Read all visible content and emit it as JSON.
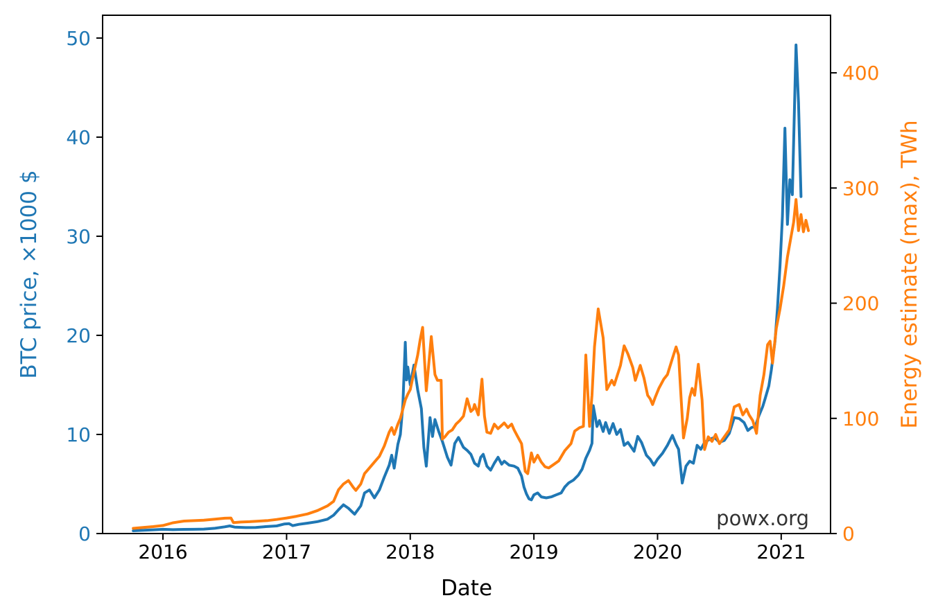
{
  "figure": {
    "watermark": "powx.org"
  },
  "chart_data": {
    "type": "line",
    "title": "",
    "xlabel": "Date",
    "x_ticks": [
      2016,
      2017,
      2018,
      2019,
      2020,
      2021
    ],
    "x_range": [
      2015.512,
      2021.399
    ],
    "grid": false,
    "legend": "none",
    "left_axis": {
      "label": "BTC price, ×1000 $",
      "color": "#1f77b4",
      "ticks": [
        0,
        10,
        20,
        30,
        40,
        50
      ],
      "range": [
        0,
        52.3
      ]
    },
    "right_axis": {
      "label": "Energy estimate (max), TWh",
      "color": "#ff7f0e",
      "ticks": [
        0,
        100,
        200,
        300,
        400
      ],
      "range": [
        0,
        450
      ]
    },
    "annotations": [
      {
        "text": "powx.org",
        "position": "bottom-right-inside"
      }
    ],
    "series": [
      {
        "name": "BTC price, ×1000 $",
        "axis": "left",
        "color": "#1f77b4",
        "x": [
          2015.76,
          2015.83,
          2015.92,
          2016.0,
          2016.08,
          2016.17,
          2016.25,
          2016.33,
          2016.42,
          2016.5,
          2016.54,
          2016.58,
          2016.67,
          2016.75,
          2016.83,
          2016.92,
          2016.98,
          2017.02,
          2017.05,
          2017.1,
          2017.17,
          2017.25,
          2017.33,
          2017.38,
          2017.42,
          2017.46,
          2017.5,
          2017.55,
          2017.6,
          2017.63,
          2017.67,
          2017.71,
          2017.75,
          2017.79,
          2017.83,
          2017.85,
          2017.87,
          2017.9,
          2017.92,
          2017.94,
          2017.96,
          2017.97,
          2017.98,
          2018.0,
          2018.03,
          2018.06,
          2018.09,
          2018.11,
          2018.13,
          2018.16,
          2018.18,
          2018.2,
          2018.23,
          2018.26,
          2018.3,
          2018.33,
          2018.36,
          2018.39,
          2018.43,
          2018.46,
          2018.49,
          2018.52,
          2018.55,
          2018.57,
          2018.59,
          2018.62,
          2018.65,
          2018.68,
          2018.71,
          2018.74,
          2018.76,
          2018.8,
          2018.84,
          2018.87,
          2018.9,
          2018.92,
          2018.94,
          2018.96,
          2018.98,
          2019.0,
          2019.03,
          2019.06,
          2019.1,
          2019.14,
          2019.18,
          2019.22,
          2019.25,
          2019.28,
          2019.32,
          2019.36,
          2019.39,
          2019.42,
          2019.45,
          2019.47,
          2019.48,
          2019.51,
          2019.53,
          2019.56,
          2019.58,
          2019.61,
          2019.64,
          2019.67,
          2019.7,
          2019.73,
          2019.76,
          2019.81,
          2019.84,
          2019.87,
          2019.91,
          2019.94,
          2019.97,
          2020.0,
          2020.04,
          2020.08,
          2020.12,
          2020.15,
          2020.17,
          2020.2,
          2020.23,
          2020.26,
          2020.29,
          2020.32,
          2020.35,
          2020.38,
          2020.42,
          2020.46,
          2020.5,
          2020.54,
          2020.58,
          2020.62,
          2020.66,
          2020.7,
          2020.73,
          2020.76,
          2020.79,
          2020.82,
          2020.85,
          2020.87,
          2020.9,
          2020.92,
          2020.95,
          2020.97,
          2020.99,
          2021.01,
          2021.03,
          2021.05,
          2021.07,
          2021.09,
          2021.12,
          2021.14,
          2021.16
        ],
        "y": [
          0.28,
          0.32,
          0.38,
          0.43,
          0.39,
          0.42,
          0.43,
          0.45,
          0.53,
          0.68,
          0.77,
          0.65,
          0.6,
          0.61,
          0.7,
          0.77,
          0.96,
          1.0,
          0.8,
          0.93,
          1.05,
          1.2,
          1.45,
          1.85,
          2.4,
          2.9,
          2.55,
          1.95,
          2.8,
          4.1,
          4.4,
          3.6,
          4.4,
          5.7,
          6.9,
          7.9,
          6.6,
          9.0,
          10.0,
          13.0,
          19.3,
          15.5,
          16.8,
          15.0,
          17.0,
          14.5,
          12.6,
          8.7,
          6.8,
          11.7,
          9.8,
          11.5,
          10.3,
          9.3,
          7.7,
          6.9,
          9.1,
          9.7,
          8.7,
          8.4,
          8.0,
          7.1,
          6.8,
          7.7,
          8.0,
          6.8,
          6.4,
          7.1,
          7.7,
          7.0,
          7.3,
          6.9,
          6.8,
          6.6,
          5.8,
          4.7,
          4.0,
          3.5,
          3.4,
          3.9,
          4.1,
          3.7,
          3.6,
          3.7,
          3.9,
          4.1,
          4.7,
          5.1,
          5.4,
          5.9,
          6.5,
          7.6,
          8.4,
          9.1,
          12.9,
          10.8,
          11.4,
          10.3,
          11.2,
          10.1,
          11.1,
          10.0,
          10.5,
          8.9,
          9.2,
          8.3,
          9.8,
          9.2,
          7.9,
          7.5,
          6.9,
          7.5,
          8.1,
          8.9,
          9.9,
          9.0,
          8.5,
          5.1,
          6.8,
          7.3,
          7.1,
          8.9,
          8.5,
          9.2,
          9.5,
          9.7,
          9.2,
          9.4,
          10.1,
          11.7,
          11.6,
          11.2,
          10.4,
          10.7,
          10.8,
          11.9,
          12.8,
          13.6,
          14.9,
          16.5,
          19.4,
          22.8,
          27.0,
          32.0,
          40.9,
          31.2,
          35.7,
          34.2,
          49.3,
          43.5,
          34.0
        ]
      },
      {
        "name": "Energy estimate (max), TWh",
        "axis": "right",
        "color": "#ff7f0e",
        "x": [
          2015.76,
          2015.83,
          2015.92,
          2016.0,
          2016.08,
          2016.17,
          2016.25,
          2016.33,
          2016.42,
          2016.5,
          2016.55,
          2016.57,
          2016.63,
          2016.7,
          2016.78,
          2016.85,
          2016.92,
          2017.0,
          2017.08,
          2017.17,
          2017.25,
          2017.33,
          2017.38,
          2017.42,
          2017.46,
          2017.5,
          2017.54,
          2017.56,
          2017.6,
          2017.63,
          2017.67,
          2017.71,
          2017.75,
          2017.79,
          2017.83,
          2017.85,
          2017.87,
          2017.9,
          2017.92,
          2017.94,
          2017.96,
          2017.98,
          2018.0,
          2018.02,
          2018.04,
          2018.06,
          2018.08,
          2018.1,
          2018.13,
          2018.17,
          2018.2,
          2018.22,
          2018.25,
          2018.26,
          2018.28,
          2018.31,
          2018.34,
          2018.37,
          2018.4,
          2018.43,
          2018.46,
          2018.49,
          2018.51,
          2018.52,
          2018.55,
          2018.58,
          2018.6,
          2018.62,
          2018.65,
          2018.68,
          2018.71,
          2018.76,
          2018.79,
          2018.82,
          2018.84,
          2018.87,
          2018.9,
          2018.92,
          2018.93,
          2018.95,
          2018.98,
          2019.0,
          2019.03,
          2019.06,
          2019.09,
          2019.12,
          2019.16,
          2019.2,
          2019.25,
          2019.3,
          2019.33,
          2019.37,
          2019.4,
          2019.42,
          2019.45,
          2019.47,
          2019.49,
          2019.52,
          2019.56,
          2019.59,
          2019.63,
          2019.65,
          2019.7,
          2019.73,
          2019.76,
          2019.8,
          2019.82,
          2019.86,
          2019.89,
          2019.92,
          2019.94,
          2019.96,
          2019.98,
          2020.01,
          2020.05,
          2020.08,
          2020.12,
          2020.15,
          2020.17,
          2020.19,
          2020.21,
          2020.24,
          2020.26,
          2020.28,
          2020.3,
          2020.33,
          2020.36,
          2020.38,
          2020.41,
          2020.44,
          2020.47,
          2020.5,
          2020.54,
          2020.58,
          2020.62,
          2020.66,
          2020.69,
          2020.72,
          2020.74,
          2020.77,
          2020.8,
          2020.83,
          2020.86,
          2020.89,
          2020.91,
          2020.93,
          2020.96,
          2020.99,
          2021.02,
          2021.05,
          2021.08,
          2021.1,
          2021.12,
          2021.14,
          2021.16,
          2021.18,
          2021.2,
          2021.22
        ],
        "y": [
          4.5,
          5.2,
          6.0,
          7.0,
          9.3,
          10.8,
          11.2,
          11.6,
          12.5,
          13.3,
          13.5,
          9.5,
          10.0,
          10.3,
          10.8,
          11.3,
          12.2,
          13.5,
          15.0,
          17.0,
          20.0,
          24.0,
          28.0,
          38.0,
          43.0,
          46.0,
          40.0,
          37.5,
          43.0,
          52.0,
          57.0,
          62.0,
          67.0,
          76.0,
          88.0,
          92.0,
          86.0,
          95.0,
          100,
          108,
          116,
          121,
          125,
          135,
          145,
          155,
          168,
          179,
          124,
          171,
          138,
          133,
          133,
          82,
          84,
          88,
          90,
          95,
          98,
          102,
          117,
          106,
          108,
          112,
          103,
          134,
          102,
          88,
          87,
          95,
          91,
          96,
          92,
          95,
          90,
          84,
          78,
          62,
          54,
          52,
          70,
          62,
          68,
          62,
          58,
          57,
          60,
          63,
          72,
          78,
          89,
          92,
          93,
          155,
          93,
          120,
          162,
          195,
          170,
          125,
          133,
          129,
          146,
          163,
          156,
          144,
          133,
          146,
          135,
          120,
          117,
          112,
          118,
          126,
          134,
          138,
          152,
          162,
          155,
          118,
          83,
          100,
          118,
          126,
          120,
          147,
          116,
          73,
          84,
          80,
          86,
          78,
          84,
          90,
          110,
          112,
          103,
          108,
          103,
          98,
          87,
          120,
          138,
          164,
          167,
          148,
          178,
          195,
          215,
          240,
          258,
          270,
          290,
          263,
          277,
          262,
          272,
          263
        ]
      }
    ]
  }
}
